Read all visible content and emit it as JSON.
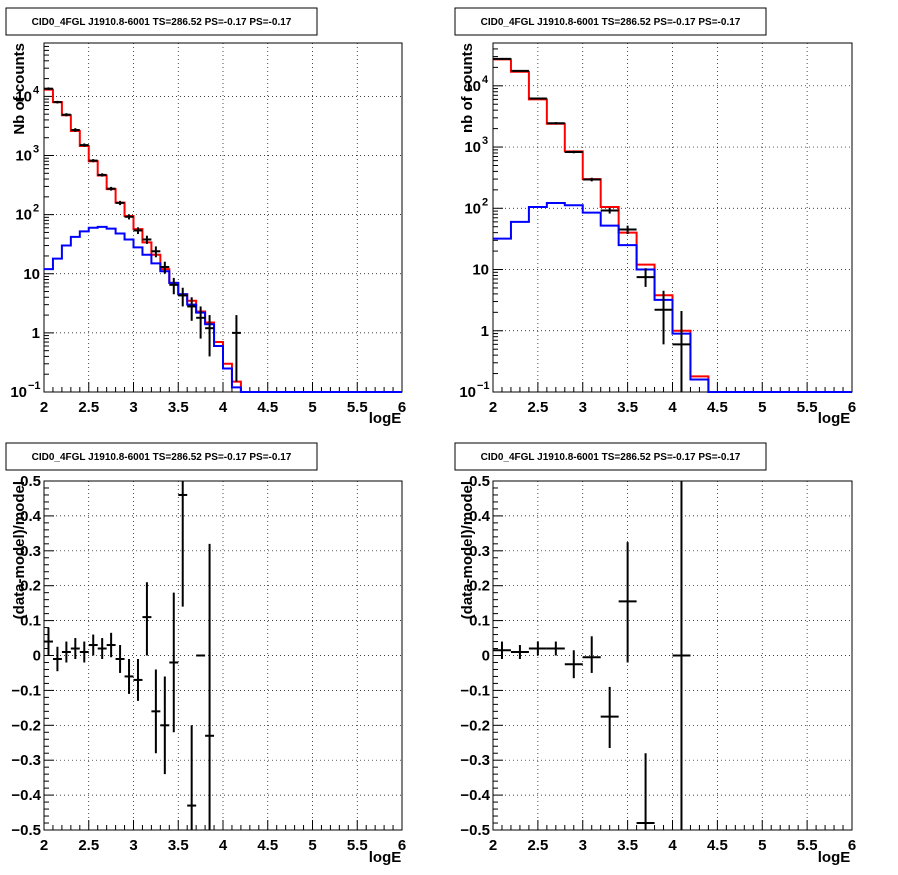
{
  "canvas": {
    "background": "#ffffff"
  },
  "colors": {
    "model_total": "#ff0000",
    "model_source": "#0000ff",
    "data": "#000000",
    "grid": "#000000"
  },
  "chart_data": [
    {
      "id": "top-left",
      "type": "line",
      "title": "CID0_4FGL J1910.8-6001 TS=286.52 PS=-0.17 PS=-0.17",
      "xlabel": "logE",
      "ylabel": "Nb of counts",
      "xlim": [
        2,
        6
      ],
      "ylim": [
        0.1,
        80000
      ],
      "yscale": "log",
      "grid": true,
      "xticks": [
        "2",
        "2.5",
        "3",
        "3.5",
        "4",
        "4.5",
        "5",
        "5.5",
        "6"
      ],
      "yticks": [
        {
          "value": 0.1,
          "label": "10",
          "exp": "−1"
        },
        {
          "value": 1,
          "label": "1",
          "exp": ""
        },
        {
          "value": 10,
          "label": "10",
          "exp": ""
        },
        {
          "value": 100,
          "label": "10",
          "exp": "2"
        },
        {
          "value": 1000,
          "label": "10",
          "exp": "3"
        },
        {
          "value": 10000,
          "label": "10",
          "exp": "4"
        }
      ],
      "bin_edges": [
        2.0,
        2.1,
        2.2,
        2.3,
        2.4,
        2.5,
        2.6,
        2.7,
        2.8,
        2.9,
        3.0,
        3.1,
        3.2,
        3.3,
        3.4,
        3.5,
        3.6,
        3.7,
        3.8,
        3.9,
        4.0,
        4.1,
        4.2,
        4.3,
        4.4,
        4.5,
        4.6,
        4.7,
        4.8,
        4.9,
        5.0,
        5.1,
        5.2,
        5.3,
        5.4,
        5.5,
        5.6,
        5.7,
        5.8,
        5.9,
        6.0
      ],
      "series": [
        {
          "name": "",
          "kind": "hist",
          "color": "#ff0000",
          "values": [
            13000,
            8000,
            4800,
            2600,
            1450,
            800,
            460,
            270,
            160,
            95,
            57,
            34,
            21,
            12,
            7,
            4.5,
            3.5,
            2.3,
            1.5,
            0.7,
            0.3,
            0.15,
            0.1,
            0.1,
            0.1,
            0.1,
            0.1,
            0.1,
            0.1,
            0.1,
            0.1,
            0.1,
            0.1,
            0.1,
            0.1,
            0.1,
            0.1,
            0.1,
            0.1,
            0.1
          ]
        },
        {
          "name": "",
          "kind": "hist",
          "color": "#0000ff",
          "values": [
            12,
            18,
            30,
            42,
            52,
            60,
            62,
            58,
            48,
            38,
            28,
            21,
            15,
            11,
            7,
            4.5,
            3,
            2.2,
            1.4,
            0.6,
            0.25,
            0.12,
            0.1,
            0.1,
            0.1,
            0.1,
            0.1,
            0.1,
            0.1,
            0.1,
            0.1,
            0.1,
            0.1,
            0.1,
            0.1,
            0.1,
            0.1,
            0.1,
            0.1,
            0.1
          ]
        },
        {
          "name": "",
          "kind": "points",
          "color": "#000000",
          "x": [
            2.05,
            2.15,
            2.25,
            2.35,
            2.45,
            2.55,
            2.65,
            2.75,
            2.85,
            2.95,
            3.05,
            3.15,
            3.25,
            3.35,
            3.45,
            3.55,
            3.65,
            3.75,
            3.85,
            4.15
          ],
          "y": [
            13500,
            8000,
            4900,
            2700,
            1500,
            820,
            470,
            275,
            158,
            92,
            54,
            38,
            24,
            13,
            6.5,
            4.3,
            2.8,
            1.8,
            1.2,
            1.0
          ],
          "ylow": [
            12800,
            7600,
            4600,
            2500,
            1400,
            770,
            440,
            255,
            145,
            83,
            47,
            32,
            19,
            10,
            4.5,
            2.8,
            1.6,
            0.8,
            0.4,
            0.15
          ],
          "yhigh": [
            14200,
            8400,
            5200,
            2900,
            1600,
            870,
            500,
            295,
            171,
            101,
            61,
            44,
            29,
            16,
            8.5,
            5.8,
            4.0,
            2.8,
            2.0,
            2.0
          ],
          "xerr": 0.05
        }
      ]
    },
    {
      "id": "top-right",
      "type": "line",
      "title": "CID0_4FGL J1910.8-6001 TS=286.52 PS=-0.17 PS=-0.17",
      "xlabel": "logE",
      "ylabel": "nb of counts",
      "xlim": [
        2,
        6
      ],
      "ylim": [
        0.1,
        50000
      ],
      "yscale": "log",
      "grid": true,
      "xticks": [
        "2",
        "2.5",
        "3",
        "3.5",
        "4",
        "4.5",
        "5",
        "5.5",
        "6"
      ],
      "yticks": [
        {
          "value": 0.1,
          "label": "10",
          "exp": "−1"
        },
        {
          "value": 1,
          "label": "1",
          "exp": ""
        },
        {
          "value": 10,
          "label": "10",
          "exp": ""
        },
        {
          "value": 100,
          "label": "10",
          "exp": "2"
        },
        {
          "value": 1000,
          "label": "10",
          "exp": "3"
        },
        {
          "value": 10000,
          "label": "10",
          "exp": "4"
        }
      ],
      "bin_edges": [
        2.0,
        2.2,
        2.4,
        2.6,
        2.8,
        3.0,
        3.2,
        3.4,
        3.6,
        3.8,
        4.0,
        4.2,
        4.4,
        4.6,
        4.8,
        5.0,
        5.2,
        5.4,
        5.6,
        5.8,
        6.0
      ],
      "series": [
        {
          "name": "",
          "kind": "hist",
          "color": "#ff0000",
          "values": [
            27000,
            17000,
            6000,
            2400,
            850,
            300,
            105,
            40,
            12,
            3.8,
            1.0,
            0.18,
            0.1,
            0.1,
            0.1,
            0.1,
            0.1,
            0.1,
            0.1,
            0.1
          ]
        },
        {
          "name": "",
          "kind": "hist",
          "color": "#0000ff",
          "values": [
            32,
            60,
            105,
            122,
            112,
            85,
            52,
            25,
            10,
            3.2,
            0.9,
            0.16,
            0.1,
            0.1,
            0.1,
            0.1,
            0.1,
            0.1,
            0.1,
            0.1
          ]
        },
        {
          "name": "",
          "kind": "points",
          "color": "#000000",
          "x": [
            2.1,
            2.3,
            2.5,
            2.7,
            2.9,
            3.1,
            3.3,
            3.5,
            3.7,
            3.9,
            4.1
          ],
          "y": [
            27500,
            17500,
            6200,
            2450,
            830,
            295,
            92,
            45,
            7.5,
            2.2,
            0.6
          ],
          "ylow": [
            26500,
            16900,
            6000,
            2350,
            790,
            275,
            82,
            38,
            5.2,
            0.6,
            0.1
          ],
          "yhigh": [
            28500,
            18100,
            6400,
            2550,
            870,
            315,
            102,
            52,
            10.5,
            4.5,
            2.1
          ],
          "xerr": 0.1
        }
      ]
    },
    {
      "id": "bottom-left",
      "type": "scatter",
      "title": "CID0_4FGL J1910.8-6001 TS=286.52 PS=-0.17 PS=-0.17",
      "xlabel": "logE",
      "ylabel": "(data-model)/model",
      "xlim": [
        2,
        6
      ],
      "ylim": [
        -0.5,
        0.5
      ],
      "yscale": "linear",
      "grid": true,
      "xticks": [
        "2",
        "2.5",
        "3",
        "3.5",
        "4",
        "4.5",
        "5",
        "5.5",
        "6"
      ],
      "yticks": [
        "−0.5",
        "−0.4",
        "−0.3",
        "−0.2",
        "−0.1",
        "0",
        "0.1",
        "0.2",
        "0.3",
        "0.4",
        "0.5"
      ],
      "series": [
        {
          "name": "",
          "kind": "points",
          "color": "#000000",
          "x": [
            2.05,
            2.15,
            2.25,
            2.35,
            2.45,
            2.55,
            2.65,
            2.75,
            2.85,
            2.95,
            3.05,
            3.15,
            3.25,
            3.35,
            3.45,
            3.55,
            3.65,
            3.75,
            3.85
          ],
          "y": [
            0.04,
            -0.01,
            0.01,
            0.02,
            0.01,
            0.03,
            0.02,
            0.03,
            -0.01,
            -0.06,
            -0.07,
            0.11,
            -0.16,
            -0.2,
            -0.02,
            0.46,
            -0.43,
            0.0,
            -0.23
          ],
          "ylow": [
            0.0,
            -0.045,
            -0.02,
            -0.01,
            -0.02,
            0.0,
            -0.01,
            -0.005,
            -0.05,
            -0.11,
            -0.13,
            0.0,
            -0.28,
            -0.34,
            -0.22,
            0.14,
            -0.5,
            0.0,
            -0.5
          ],
          "yhigh": [
            0.08,
            0.025,
            0.04,
            0.05,
            0.04,
            0.06,
            0.05,
            0.065,
            0.03,
            -0.01,
            -0.01,
            0.21,
            -0.04,
            -0.06,
            0.18,
            0.5,
            -0.2,
            0.0,
            0.32
          ],
          "xerr": 0.05
        }
      ]
    },
    {
      "id": "bottom-right",
      "type": "scatter",
      "title": "CID0_4FGL J1910.8-6001 TS=286.52 PS=-0.17 PS=-0.17",
      "xlabel": "logE",
      "ylabel": "(data-model)/model",
      "xlim": [
        2,
        6
      ],
      "ylim": [
        -0.5,
        0.5
      ],
      "yscale": "linear",
      "grid": true,
      "xticks": [
        "2",
        "2.5",
        "3",
        "3.5",
        "4",
        "4.5",
        "5",
        "5.5",
        "6"
      ],
      "yticks": [
        "−0.5",
        "−0.4",
        "−0.3",
        "−0.2",
        "−0.1",
        "0",
        "0.1",
        "0.2",
        "0.3",
        "0.4",
        "0.5"
      ],
      "series": [
        {
          "name": "",
          "kind": "points",
          "color": "#000000",
          "x": [
            2.1,
            2.3,
            2.5,
            2.7,
            2.9,
            3.1,
            3.3,
            3.5,
            3.7,
            4.1
          ],
          "y": [
            0.015,
            0.01,
            0.02,
            0.02,
            -0.025,
            -0.005,
            -0.175,
            0.155,
            -0.48,
            0.0
          ],
          "ylow": [
            -0.01,
            -0.01,
            0.0,
            0.0,
            -0.065,
            -0.05,
            -0.265,
            -0.02,
            -0.5,
            -0.5
          ],
          "yhigh": [
            0.04,
            0.03,
            0.04,
            0.04,
            0.015,
            0.055,
            -0.09,
            0.325,
            -0.28,
            0.5
          ],
          "xerr": 0.1
        }
      ]
    }
  ]
}
